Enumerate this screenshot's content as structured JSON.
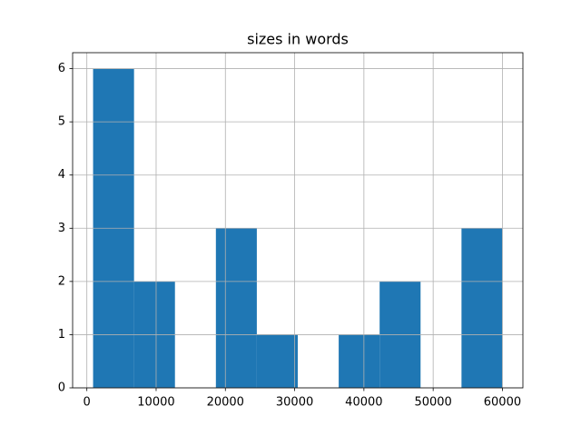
{
  "chart_data": {
    "type": "histogram",
    "title": "sizes in words",
    "bins": [
      900,
      6810,
      12720,
      18630,
      24540,
      30450,
      36360,
      42270,
      48180,
      54090,
      60000
    ],
    "counts": [
      6,
      2,
      0,
      3,
      1,
      0,
      1,
      2,
      0,
      3
    ],
    "color": "#1f77b4",
    "xlim": [
      -2055,
      62955
    ],
    "xticks": [
      0,
      10000,
      20000,
      30000,
      40000,
      50000,
      60000
    ],
    "ylim": [
      0,
      6.3
    ],
    "yticks": [
      0,
      1,
      2,
      3,
      4,
      5,
      6
    ],
    "grid": true
  }
}
